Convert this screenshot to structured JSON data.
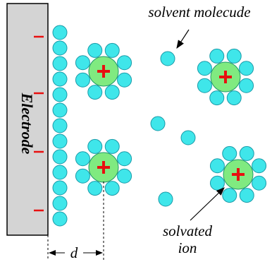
{
  "labels": {
    "electrode": "Electrode",
    "solvent": "solvent molecude",
    "solvated": [
      "solvated",
      "ion"
    ],
    "distance": "d"
  }
}
